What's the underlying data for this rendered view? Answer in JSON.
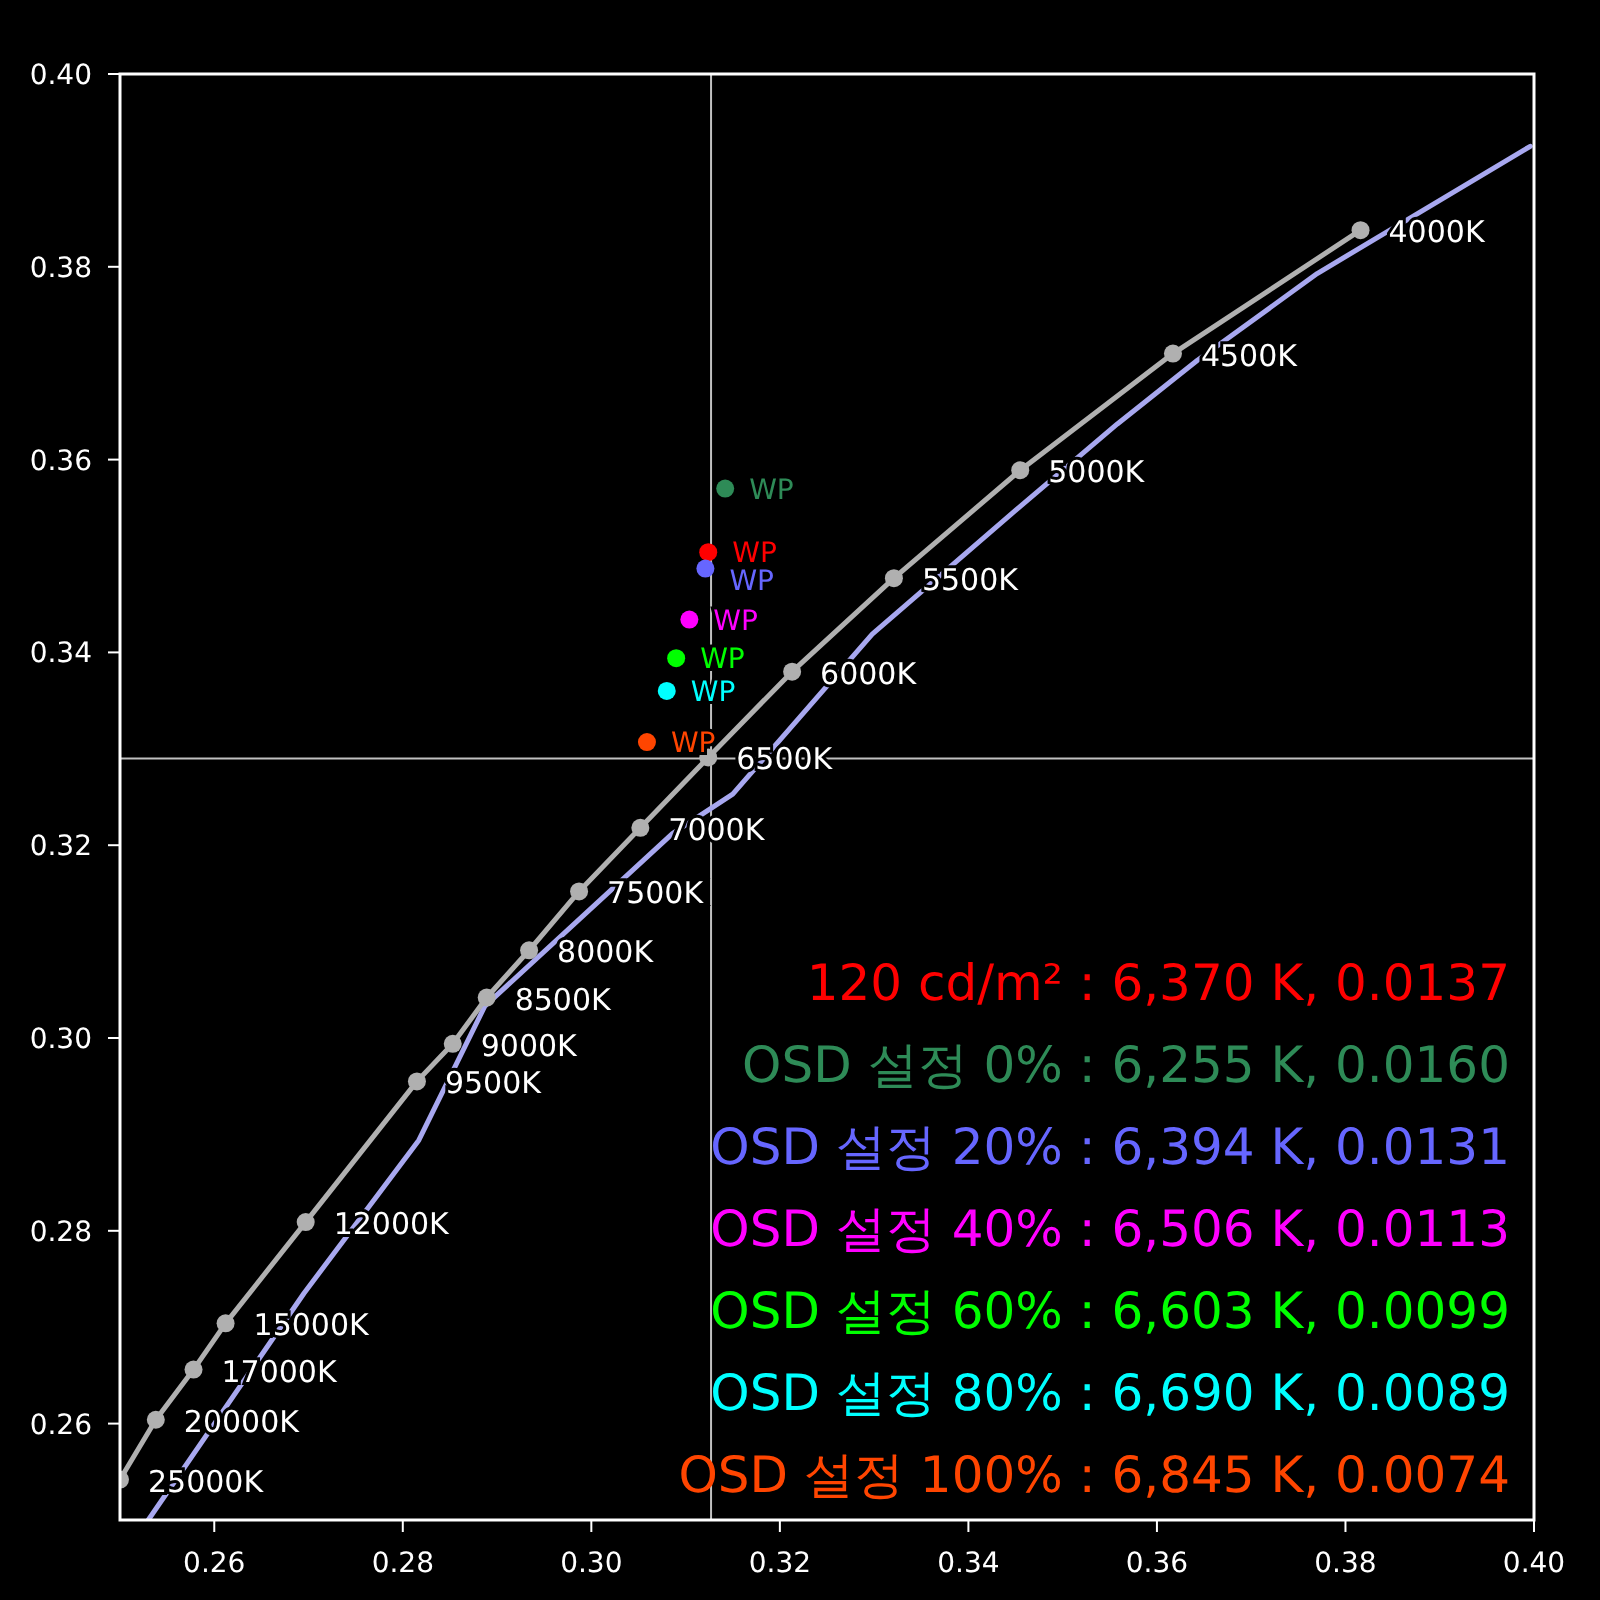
{
  "chart_data": {
    "type": "line",
    "xlim": [
      0.25,
      0.4
    ],
    "ylim": [
      0.25,
      0.4
    ],
    "xticks": [
      0.26,
      0.28,
      {
        "value": 0.3,
        "label": "0.30"
      },
      0.32,
      0.34,
      0.36,
      0.38,
      {
        "value": 0.4,
        "label": "0.40"
      }
    ],
    "yticks": [
      0.26,
      0.28,
      {
        "value": 0.3,
        "label": "0.30"
      },
      0.32,
      0.34,
      0.36,
      0.38,
      {
        "value": 0.4,
        "label": "0.40"
      }
    ],
    "legend": "bottom right",
    "annotations": [
      {
        "text": "4000K",
        "x": 0.3816,
        "y": 0.3838
      },
      {
        "text": "4500K",
        "x": 0.3617,
        "y": 0.371
      },
      {
        "text": "5000K",
        "x": 0.3455,
        "y": 0.3589
      },
      {
        "text": "5500K",
        "x": 0.3321,
        "y": 0.3477
      },
      {
        "text": "6000K",
        "x": 0.3213,
        "y": 0.338
      },
      {
        "text": "6500K",
        "x": 0.3124,
        "y": 0.3291
      },
      {
        "text": "7000K",
        "x": 0.3052,
        "y": 0.3218
      },
      {
        "text": "7500K",
        "x": 0.2987,
        "y": 0.3152
      },
      {
        "text": "8000K",
        "x": 0.2934,
        "y": 0.3091
      },
      {
        "text": "8500K",
        "x": 0.2889,
        "y": 0.3042
      },
      {
        "text": "9000K",
        "x": 0.2853,
        "y": 0.2994
      },
      {
        "text": "9500K",
        "x": 0.2815,
        "y": 0.2955
      },
      {
        "text": "12000K",
        "x": 0.2697,
        "y": 0.2809
      },
      {
        "text": "15000K",
        "x": 0.2612,
        "y": 0.2704
      },
      {
        "text": "17000K",
        "x": 0.2578,
        "y": 0.2656
      },
      {
        "text": "20000K",
        "x": 0.2538,
        "y": 0.2604
      },
      {
        "text": "25000K",
        "x": 0.25,
        "y": 0.2542
      }
    ],
    "ref_lines": [
      {
        "axis": "x",
        "value": 0.3127,
        "color": "#c0c0c0"
      },
      {
        "axis": "y",
        "value": 0.329,
        "color": "#c0c0c0"
      }
    ],
    "series": [
      {
        "color": "#a8a8f0",
        "marker": "none",
        "x": [
          0.253,
          0.2695,
          0.2817,
          0.2887,
          0.3086,
          0.315,
          0.3298,
          0.3446,
          0.3558,
          0.3643,
          0.377,
          0.3912,
          0.3996
        ],
        "values": [
          0.25,
          0.2735,
          0.2894,
          0.3033,
          0.3212,
          0.3253,
          0.3419,
          0.3544,
          0.3637,
          0.3703,
          0.3793,
          0.3876,
          0.3925
        ]
      },
      {
        "color": "#b0b0b0",
        "marker": "circle",
        "x": [
          0.3816,
          0.3617,
          0.3455,
          0.3321,
          0.3213,
          0.3124,
          0.3052,
          0.2987,
          0.2934,
          0.2889,
          0.2853,
          0.2815,
          0.2697,
          0.2612,
          0.2578,
          0.2538,
          0.25
        ],
        "values": [
          0.3838,
          0.371,
          0.3589,
          0.3477,
          0.338,
          0.3291,
          0.3218,
          0.3152,
          0.3091,
          0.3042,
          0.2994,
          0.2955,
          0.2809,
          0.2704,
          0.2656,
          0.2604,
          0.2542
        ]
      },
      {
        "type": "scatter",
        "name": "120 cd/m² : 6,370 K, 0.0137",
        "color": "#ff0000",
        "marker": "circle",
        "x": [
          0.3124
        ],
        "values": [
          0.3504
        ],
        "value_labels": [
          "WP"
        ]
      },
      {
        "type": "scatter",
        "name": "OSD 설정 0% : 6,255 K, 0.0160",
        "color": "#2e8b57",
        "marker": "circle",
        "x": [
          0.3142
        ],
        "values": [
          0.357
        ],
        "value_labels": [
          "WP"
        ]
      },
      {
        "type": "scatter",
        "name": "OSD 설정 20% : 6,394 K, 0.0131",
        "color": "#6666ff",
        "marker": "circle",
        "x": [
          0.3121
        ],
        "values": [
          0.3487
        ],
        "value_labels": [
          "WP"
        ]
      },
      {
        "type": "scatter",
        "name": "OSD 설정 40% : 6,506 K, 0.0113",
        "color": "#ff00ff",
        "marker": "circle",
        "x": [
          0.3104
        ],
        "values": [
          0.3434
        ],
        "value_labels": [
          "WP"
        ]
      },
      {
        "type": "scatter",
        "name": "OSD 설정 60% : 6,603 K, 0.0099",
        "color": "#00ff00",
        "marker": "circle",
        "x": [
          0.309
        ],
        "values": [
          0.3394
        ],
        "value_labels": [
          "WP"
        ]
      },
      {
        "type": "scatter",
        "name": "OSD 설정 80% : 6,690 K, 0.0089",
        "color": "#00ffff",
        "marker": "circle",
        "x": [
          0.308
        ],
        "values": [
          0.336
        ],
        "value_labels": [
          "WP"
        ]
      },
      {
        "type": "scatter",
        "name": "OSD 설정 100% : 6,845 K, 0.0074",
        "color": "#ff4500",
        "marker": "circle",
        "x": [
          0.3059
        ],
        "values": [
          0.3307
        ],
        "value_labels": [
          "WP"
        ]
      }
    ]
  }
}
